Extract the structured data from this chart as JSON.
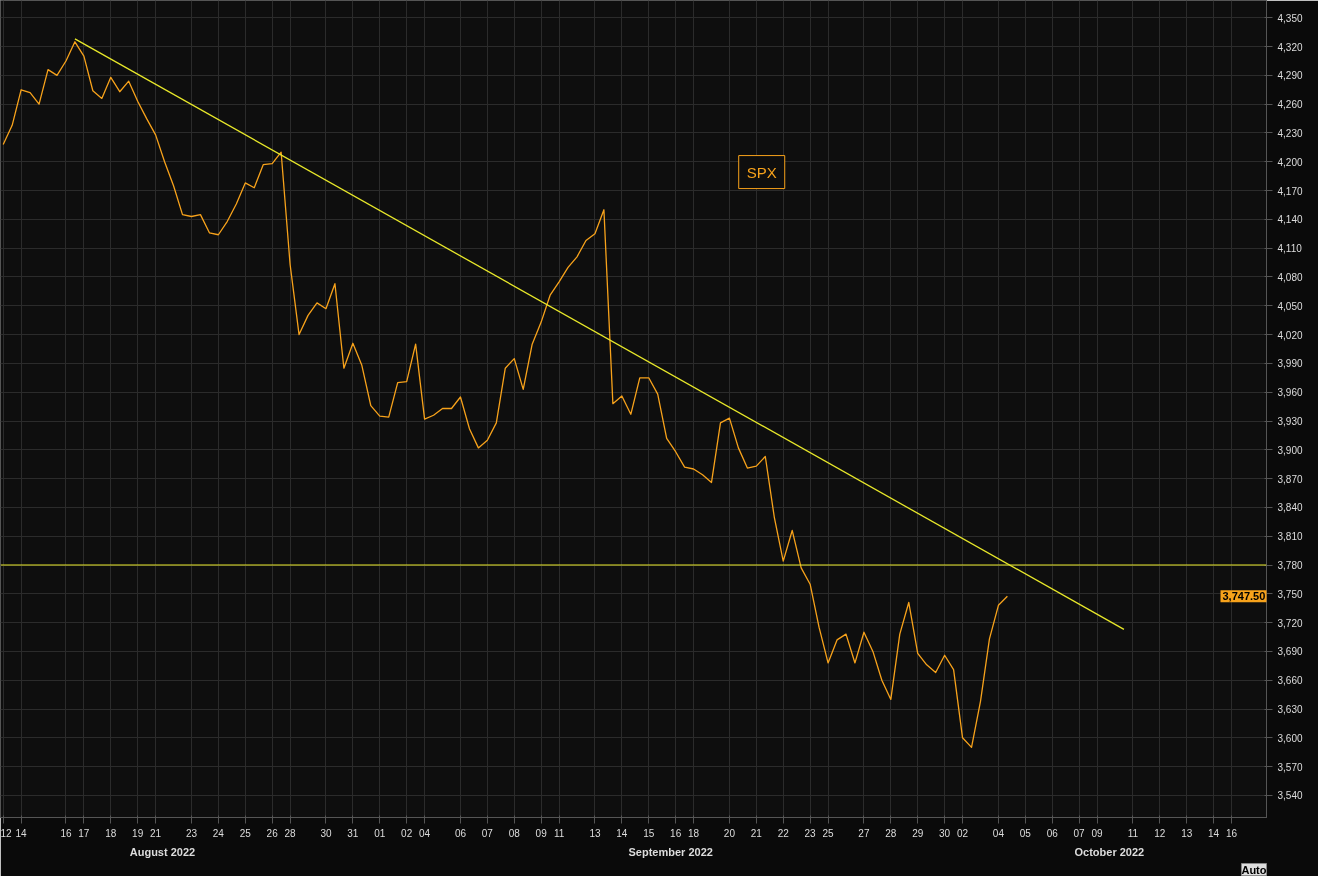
{
  "chart_data": {
    "type": "line",
    "ylim": [
      3517,
      4368
    ],
    "categories": [
      "12",
      null,
      "14",
      null,
      null,
      null,
      null,
      "16",
      null,
      "17",
      null,
      null,
      "18",
      null,
      null,
      "19",
      null,
      "21",
      null,
      null,
      null,
      "23",
      null,
      null,
      "24",
      null,
      null,
      "25",
      null,
      null,
      "26",
      null,
      "28",
      null,
      null,
      null,
      "30",
      null,
      null,
      "31",
      null,
      null,
      "01",
      null,
      null,
      "02",
      null,
      "04",
      null,
      null,
      null,
      "06",
      null,
      null,
      "07",
      null,
      null,
      "08",
      null,
      null,
      "09",
      null,
      "11",
      null,
      null,
      null,
      "13",
      null,
      null,
      "14",
      null,
      null,
      "15",
      null,
      null,
      "16",
      null,
      "18",
      null,
      null,
      null,
      "20",
      null,
      null,
      "21",
      null,
      null,
      "22",
      null,
      null,
      "23",
      null,
      "25",
      null,
      null,
      null,
      "27",
      null,
      null,
      "28",
      null,
      null,
      "29",
      null,
      null,
      "30",
      null,
      "02",
      null,
      null,
      null,
      "04",
      null,
      null,
      "05",
      null,
      null,
      "06",
      null,
      null,
      "07",
      null,
      "09",
      null,
      null,
      null,
      "11",
      null,
      null,
      "12",
      null,
      null,
      "13",
      null,
      null,
      "14",
      null,
      "16",
      null,
      null,
      null
    ],
    "yticks": [
      {
        "value": 3540,
        "label": "3,540"
      },
      {
        "value": 3570,
        "label": "3,570"
      },
      {
        "value": 3600,
        "label": "3,600"
      },
      {
        "value": 3630,
        "label": "3,630"
      },
      {
        "value": 3660,
        "label": "3,660"
      },
      {
        "value": 3690,
        "label": "3,690"
      },
      {
        "value": 3720,
        "label": "3,720"
      },
      {
        "value": 3750,
        "label": "3,750"
      },
      {
        "value": 3780,
        "label": "3,780"
      },
      {
        "value": 3810,
        "label": "3,810"
      },
      {
        "value": 3840,
        "label": "3,840"
      },
      {
        "value": 3870,
        "label": "3,870"
      },
      {
        "value": 3900,
        "label": "3,900"
      },
      {
        "value": 3930,
        "label": "3,930"
      },
      {
        "value": 3960,
        "label": "3,960"
      },
      {
        "value": 3990,
        "label": "3,990"
      },
      {
        "value": 4020,
        "label": "4,020"
      },
      {
        "value": 4050,
        "label": "4,050"
      },
      {
        "value": 4080,
        "label": "4,080"
      },
      {
        "value": 4110,
        "label": "4,110"
      },
      {
        "value": 4140,
        "label": "4,140"
      },
      {
        "value": 4170,
        "label": "4,170"
      },
      {
        "value": 4200,
        "label": "4,200"
      },
      {
        "value": 4230,
        "label": "4,230"
      },
      {
        "value": 4260,
        "label": "4,260"
      },
      {
        "value": 4290,
        "label": "4,290"
      },
      {
        "value": 4320,
        "label": "4,320"
      },
      {
        "value": 4350,
        "label": "4,350"
      }
    ],
    "grid": true,
    "series": [
      {
        "name": "SPX",
        "color": "#f7a21b",
        "values": [
          4218,
          4238,
          4275,
          4272,
          4260,
          4296,
          4290,
          4305,
          4325,
          4310,
          4274,
          4266,
          4288,
          4273,
          4284,
          4263,
          4245,
          4228,
          4200,
          4175,
          4145,
          4143,
          4145,
          4126,
          4124,
          4138,
          4156,
          4178,
          4173,
          4197,
          4198,
          4210,
          4093,
          4020,
          4040,
          4053,
          4047,
          4073,
          3985,
          4011,
          3988,
          3946,
          3935,
          3934,
          3970,
          3971,
          4010,
          3932,
          3936,
          3943,
          3943,
          3955,
          3922,
          3902,
          3910,
          3928,
          3985,
          3995,
          3963,
          4010,
          4033,
          4061,
          4075,
          4090,
          4101,
          4118,
          4125,
          4150,
          3948,
          3956,
          3937,
          3975,
          3975,
          3958,
          3912,
          3898,
          3882,
          3880,
          3874,
          3866,
          3928,
          3933,
          3902,
          3881,
          3883,
          3893,
          3830,
          3784,
          3816,
          3777,
          3760,
          3715,
          3678,
          3702,
          3708,
          3678,
          3710,
          3690,
          3660,
          3640,
          3708,
          3741,
          3688,
          3676,
          3668,
          3686,
          3671,
          3600,
          3590,
          3638,
          3703,
          3738,
          3747.5,
          null,
          null,
          null,
          null,
          null,
          null,
          null,
          null,
          null,
          null,
          null,
          null,
          null,
          null,
          null,
          null,
          null,
          null,
          null,
          null,
          null,
          null,
          null,
          null,
          null,
          null,
          null,
          null
        ]
      },
      {
        "color": "#e8e82a",
        "values": [
          null,
          null,
          null,
          null,
          null,
          null,
          null,
          null,
          4328,
          null,
          null,
          null,
          null,
          null,
          null,
          null,
          null,
          null,
          null,
          null,
          null,
          null,
          null,
          null,
          null,
          null,
          null,
          null,
          null,
          null,
          null,
          null,
          null,
          null,
          null,
          null,
          null,
          null,
          null,
          null,
          null,
          null,
          null,
          null,
          null,
          null,
          null,
          null,
          null,
          null,
          null,
          null,
          null,
          null,
          null,
          null,
          null,
          null,
          null,
          null,
          null,
          null,
          null,
          null,
          null,
          null,
          null,
          null,
          null,
          null,
          null,
          null,
          null,
          null,
          null,
          null,
          null,
          null,
          null,
          null,
          null,
          null,
          null,
          null,
          null,
          null,
          null,
          null,
          null,
          null,
          null,
          null,
          null,
          null,
          null,
          null,
          null,
          null,
          null,
          null,
          null,
          null,
          null,
          null,
          null,
          null,
          null,
          null,
          null,
          null,
          null,
          null,
          null,
          null,
          null,
          null,
          null,
          null,
          null,
          null,
          null,
          null,
          null,
          null,
          null,
          3713,
          null,
          null,
          null,
          null,
          null,
          null,
          null,
          null,
          null,
          null,
          null,
          null,
          null,
          null,
          null
        ]
      }
    ],
    "ref_lines": [
      {
        "axis": "y",
        "value": 3780,
        "color": "#e8e82a"
      }
    ],
    "annotations": [
      "August 2022",
      "September 2022",
      "October 2022",
      "3,747.50",
      "Auto"
    ]
  }
}
